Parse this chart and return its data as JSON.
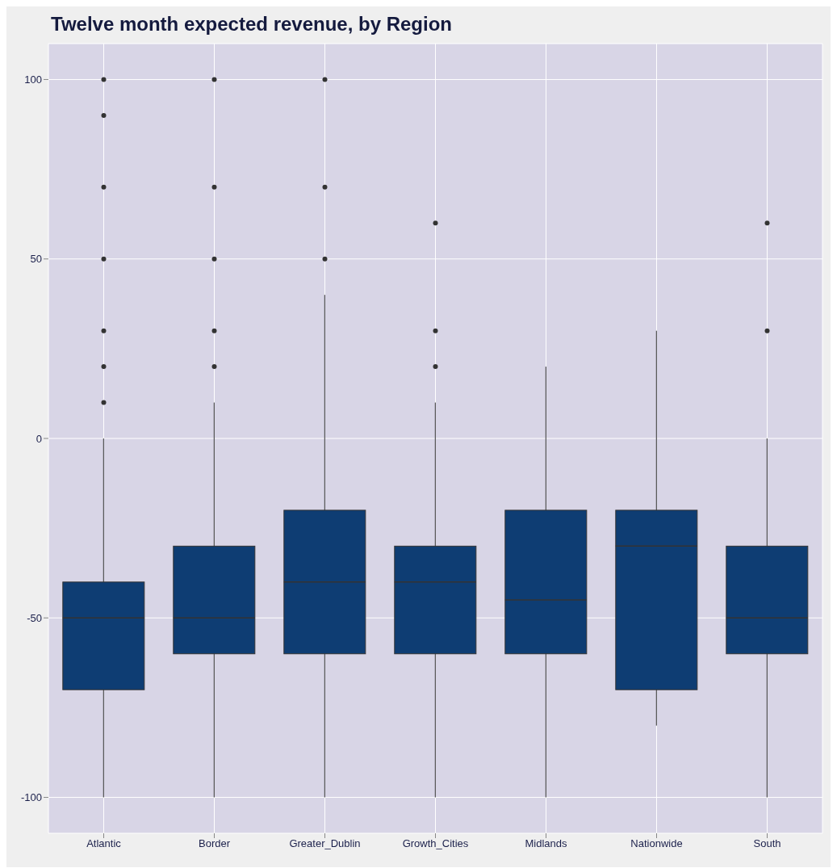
{
  "chart_data": {
    "type": "box",
    "title": "Twelve month expected revenue, by Region",
    "categories": [
      "Atlantic",
      "Border",
      "Greater_Dublin",
      "Growth_Cities",
      "Midlands",
      "Nationwide",
      "South"
    ],
    "color": "#0e3d73",
    "boxes": [
      {
        "low": -100,
        "q1": -70,
        "median": -50,
        "q3": -40,
        "high": 0,
        "outliers": [
          10,
          20,
          30,
          50,
          70,
          90,
          100
        ]
      },
      {
        "low": -100,
        "q1": -60,
        "median": -50,
        "q3": -30,
        "high": 10,
        "outliers": [
          20,
          30,
          50,
          70,
          100
        ]
      },
      {
        "low": -100,
        "q1": -60,
        "median": -40,
        "q3": -20,
        "high": 40,
        "outliers": [
          50,
          70,
          100
        ]
      },
      {
        "low": -100,
        "q1": -60,
        "median": -40,
        "q3": -30,
        "high": 10,
        "outliers": [
          20,
          30,
          60
        ]
      },
      {
        "low": -100,
        "q1": -60,
        "median": -45,
        "q3": -20,
        "high": 20
      },
      {
        "low": -80,
        "q1": -70,
        "median": -30,
        "q3": -20,
        "high": 30
      },
      {
        "low": -100,
        "q1": -60,
        "median": -50,
        "q3": -30,
        "high": 0,
        "outliers": [
          30,
          60
        ]
      }
    ],
    "ylim": [
      -110,
      110
    ],
    "yticks": [
      -100,
      -50,
      0,
      50,
      100
    ],
    "grid": true
  }
}
